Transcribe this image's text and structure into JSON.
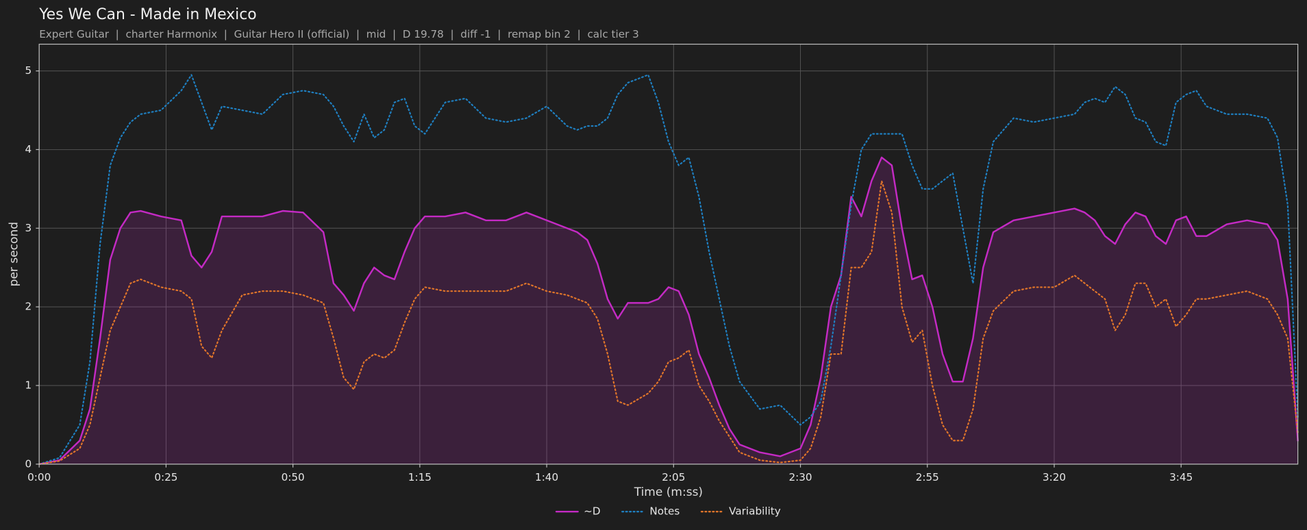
{
  "chart_data": {
    "type": "line",
    "title": "Yes We Can - Made in Mexico",
    "subtitle": "Expert Guitar  |  charter Harmonix  |  Guitar Hero II (official)  |  mid  |  D 19.78  |  diff -1  |  remap bin 2  |  calc tier 3",
    "xlabel": "Time (m:ss)",
    "ylabel": "per second",
    "x": [
      0,
      4,
      8,
      10,
      12,
      14,
      16,
      18,
      20,
      24,
      28,
      30,
      32,
      34,
      36,
      40,
      44,
      48,
      52,
      56,
      58,
      60,
      62,
      64,
      66,
      68,
      70,
      72,
      74,
      76,
      80,
      84,
      88,
      92,
      96,
      100,
      104,
      106,
      108,
      110,
      112,
      114,
      116,
      120,
      122,
      124,
      126,
      128,
      130,
      132,
      134,
      136,
      138,
      142,
      146,
      150,
      152,
      154,
      156,
      158,
      160,
      162,
      164,
      166,
      168,
      170,
      172,
      174,
      176,
      178,
      180,
      182,
      184,
      186,
      188,
      192,
      196,
      200,
      204,
      206,
      208,
      210,
      212,
      214,
      216,
      218,
      220,
      222,
      224,
      226,
      228,
      230,
      234,
      238,
      242,
      244,
      246,
      248
    ],
    "series": [
      {
        "name": "~D",
        "color": "#c42ac4",
        "dash": "solid",
        "fill": true,
        "values": [
          0,
          0.05,
          0.3,
          0.7,
          1.6,
          2.6,
          3.0,
          3.2,
          3.22,
          3.15,
          3.1,
          2.65,
          2.5,
          2.7,
          3.15,
          3.15,
          3.15,
          3.22,
          3.2,
          2.95,
          2.3,
          2.15,
          1.95,
          2.3,
          2.5,
          2.4,
          2.35,
          2.7,
          3.0,
          3.15,
          3.15,
          3.2,
          3.1,
          3.1,
          3.2,
          3.1,
          3.0,
          2.95,
          2.85,
          2.55,
          2.1,
          1.85,
          2.05,
          2.05,
          2.1,
          2.25,
          2.2,
          1.9,
          1.4,
          1.1,
          0.75,
          0.45,
          0.25,
          0.15,
          0.1,
          0.2,
          0.5,
          1.1,
          2.0,
          2.4,
          3.4,
          3.15,
          3.6,
          3.9,
          3.8,
          3.0,
          2.35,
          2.4,
          2.0,
          1.4,
          1.05,
          1.05,
          1.6,
          2.5,
          2.95,
          3.1,
          3.15,
          3.2,
          3.25,
          3.2,
          3.1,
          2.9,
          2.8,
          3.05,
          3.2,
          3.15,
          2.9,
          2.8,
          3.1,
          3.15,
          2.9,
          2.9,
          3.05,
          3.1,
          3.05,
          2.85,
          2.1,
          0.3
        ]
      },
      {
        "name": "Notes",
        "color": "#1f7fc0",
        "dash": "dotted",
        "fill": false,
        "values": [
          0,
          0.08,
          0.5,
          1.3,
          2.8,
          3.8,
          4.15,
          4.35,
          4.45,
          4.5,
          4.75,
          4.95,
          4.6,
          4.25,
          4.55,
          4.5,
          4.45,
          4.7,
          4.75,
          4.7,
          4.55,
          4.3,
          4.1,
          4.45,
          4.15,
          4.25,
          4.6,
          4.65,
          4.3,
          4.2,
          4.6,
          4.65,
          4.4,
          4.35,
          4.4,
          4.55,
          4.3,
          4.25,
          4.3,
          4.3,
          4.4,
          4.7,
          4.85,
          4.95,
          4.6,
          4.1,
          3.8,
          3.9,
          3.4,
          2.7,
          2.1,
          1.5,
          1.05,
          0.7,
          0.75,
          0.5,
          0.6,
          0.8,
          1.5,
          2.4,
          3.3,
          4.0,
          4.2,
          4.2,
          4.2,
          4.2,
          3.8,
          3.5,
          3.5,
          3.6,
          3.7,
          3.0,
          2.3,
          3.5,
          4.1,
          4.4,
          4.35,
          4.4,
          4.45,
          4.6,
          4.65,
          4.6,
          4.8,
          4.7,
          4.4,
          4.35,
          4.1,
          4.05,
          4.6,
          4.7,
          4.75,
          4.55,
          4.45,
          4.45,
          4.4,
          4.15,
          3.3,
          0.6
        ]
      },
      {
        "name": "Variability",
        "color": "#e0752a",
        "dash": "dotted",
        "fill": false,
        "values": [
          0,
          0.04,
          0.2,
          0.5,
          1.1,
          1.7,
          2.0,
          2.3,
          2.35,
          2.25,
          2.2,
          2.1,
          1.5,
          1.35,
          1.7,
          2.15,
          2.2,
          2.2,
          2.15,
          2.05,
          1.6,
          1.1,
          0.95,
          1.3,
          1.4,
          1.35,
          1.45,
          1.8,
          2.1,
          2.25,
          2.2,
          2.2,
          2.2,
          2.2,
          2.3,
          2.2,
          2.15,
          2.1,
          2.05,
          1.85,
          1.4,
          0.8,
          0.75,
          0.9,
          1.05,
          1.3,
          1.35,
          1.45,
          1.0,
          0.8,
          0.55,
          0.35,
          0.15,
          0.05,
          0.02,
          0.05,
          0.2,
          0.6,
          1.4,
          1.4,
          2.5,
          2.5,
          2.7,
          3.6,
          3.2,
          2.0,
          1.55,
          1.7,
          1.0,
          0.5,
          0.3,
          0.3,
          0.7,
          1.6,
          1.95,
          2.2,
          2.25,
          2.25,
          2.4,
          2.3,
          2.2,
          2.1,
          1.7,
          1.9,
          2.3,
          2.3,
          2.0,
          2.1,
          1.75,
          1.9,
          2.1,
          2.1,
          2.15,
          2.2,
          2.1,
          1.9,
          1.6,
          0.4
        ]
      }
    ],
    "xlim": [
      0,
      248
    ],
    "ylim": [
      0,
      5.34
    ],
    "xticks": [
      {
        "value": 0,
        "label": "0:00"
      },
      {
        "value": 25,
        "label": "0:25"
      },
      {
        "value": 50,
        "label": "0:50"
      },
      {
        "value": 75,
        "label": "1:15"
      },
      {
        "value": 100,
        "label": "1:40"
      },
      {
        "value": 125,
        "label": "2:05"
      },
      {
        "value": 150,
        "label": "2:30"
      },
      {
        "value": 175,
        "label": "2:55"
      },
      {
        "value": 200,
        "label": "3:20"
      },
      {
        "value": 225,
        "label": "3:45"
      }
    ],
    "yticks": [
      0,
      1,
      2,
      3,
      4,
      5
    ],
    "grid": true,
    "legend": "lower center"
  }
}
